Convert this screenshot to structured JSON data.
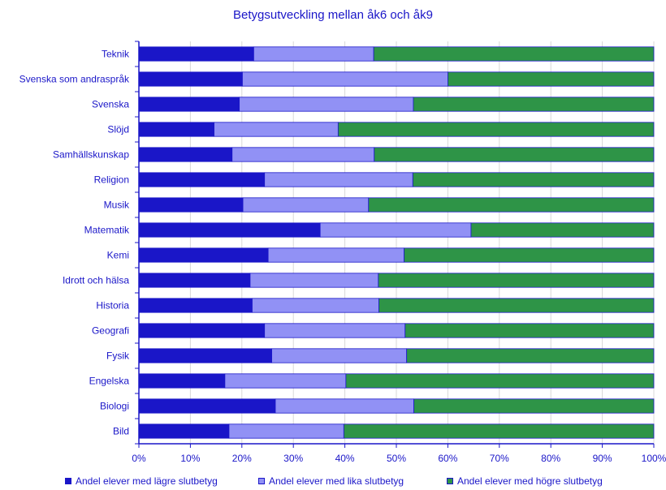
{
  "chart_data": {
    "type": "bar",
    "orientation": "horizontal",
    "stacked": true,
    "title": "Betygsutveckling mellan åk6 och åk9",
    "categories": [
      "Teknik",
      "Svenska som andraspråk",
      "Svenska",
      "Slöjd",
      "Samhällskunskap",
      "Religion",
      "Musik",
      "Matematik",
      "Kemi",
      "Idrott och hälsa",
      "Historia",
      "Geografi",
      "Fysik",
      "Engelska",
      "Biologi",
      "Bild"
    ],
    "series": [
      {
        "name": "Andel elever med lägre slutbetyg",
        "color": "#1a16c8",
        "values": [
          22.3,
          20.1,
          19.5,
          14.6,
          18.1,
          24.4,
          20.2,
          35.2,
          25.1,
          21.6,
          22.0,
          24.4,
          25.8,
          16.7,
          26.5,
          17.5
        ]
      },
      {
        "name": "Andel elever med lika slutbetyg",
        "color": "#9191f5",
        "values": [
          23.3,
          39.9,
          33.8,
          24.1,
          27.6,
          28.8,
          24.4,
          29.3,
          26.4,
          24.9,
          24.6,
          27.3,
          26.2,
          23.5,
          26.9,
          22.3
        ]
      },
      {
        "name": "Andel elever med högre slutbetyg",
        "color": "#2e9447",
        "values": [
          54.4,
          40.0,
          46.7,
          61.3,
          54.3,
          46.8,
          55.4,
          35.5,
          48.5,
          53.5,
          53.4,
          48.3,
          48.0,
          59.8,
          46.6,
          60.2
        ]
      }
    ],
    "x_ticks": [
      "0%",
      "10%",
      "20%",
      "30%",
      "40%",
      "50%",
      "60%",
      "70%",
      "80%",
      "90%",
      "100%"
    ],
    "xlim": [
      0,
      100
    ],
    "grid": "vertical",
    "legend": "bottom"
  }
}
